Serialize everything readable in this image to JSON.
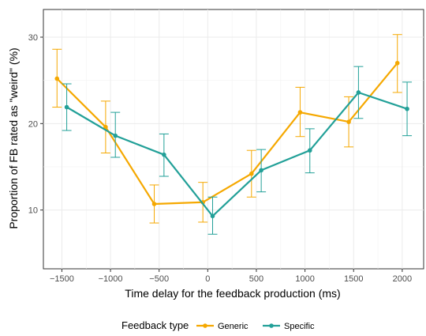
{
  "chart_data": {
    "type": "line",
    "title": "",
    "xlabel": "Time delay for the feedback production (ms)",
    "ylabel": "Proportion of FB rated as \"weird\" (%)",
    "x_ticks": [
      -1500,
      -1000,
      -500,
      0,
      500,
      1000,
      1500,
      2000
    ],
    "y_ticks": [
      10,
      20,
      30
    ],
    "xlim": [
      -1690,
      2220
    ],
    "ylim": [
      3.2,
      33.2
    ],
    "grid": true,
    "legend_position": "bottom",
    "legend_title": "Feedback type",
    "series": [
      {
        "name": "Generic",
        "color": "#F5A800",
        "x": [
          -1550,
          -1050,
          -550,
          -50,
          450,
          950,
          1450,
          1950
        ],
        "y": [
          25.2,
          19.6,
          10.7,
          10.9,
          14.2,
          21.3,
          20.2,
          27.0
        ],
        "err_low": [
          21.9,
          16.6,
          8.5,
          8.6,
          11.5,
          18.5,
          17.3,
          23.6
        ],
        "err_high": [
          28.6,
          22.6,
          12.9,
          13.2,
          16.9,
          24.2,
          23.1,
          30.3
        ]
      },
      {
        "name": "Specific",
        "color": "#22A098",
        "x": [
          -1450,
          -950,
          -450,
          50,
          550,
          1050,
          1550,
          2050
        ],
        "y": [
          21.9,
          18.6,
          16.4,
          9.3,
          14.6,
          16.9,
          23.6,
          21.7
        ],
        "err_low": [
          19.2,
          16.1,
          13.9,
          7.2,
          12.1,
          14.3,
          20.6,
          18.6
        ],
        "err_high": [
          24.6,
          21.3,
          18.8,
          11.5,
          17.0,
          19.4,
          26.6,
          24.8
        ]
      }
    ]
  }
}
